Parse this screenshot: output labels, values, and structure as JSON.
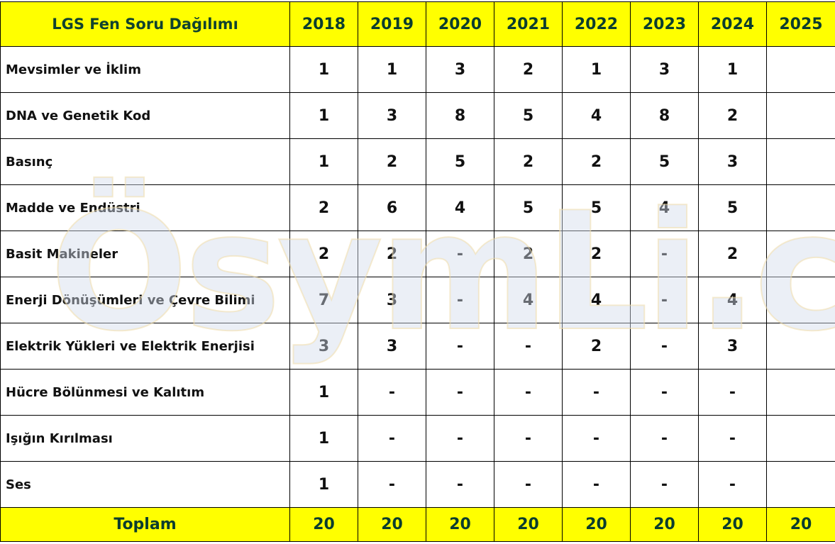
{
  "table": {
    "title": "LGS Fen Soru Dağılımı",
    "years": [
      "2018",
      "2019",
      "2020",
      "2021",
      "2022",
      "2023",
      "2024",
      "2025"
    ],
    "rows": [
      {
        "topic": "Mevsimler ve İklim",
        "values": [
          "1",
          "1",
          "3",
          "2",
          "1",
          "3",
          "1",
          ""
        ]
      },
      {
        "topic": "DNA ve Genetik Kod",
        "values": [
          "1",
          "3",
          "8",
          "5",
          "4",
          "8",
          "2",
          ""
        ]
      },
      {
        "topic": "Basınç",
        "values": [
          "1",
          "2",
          "5",
          "2",
          "2",
          "5",
          "3",
          ""
        ]
      },
      {
        "topic": "Madde ve Endüstri",
        "values": [
          "2",
          "6",
          "4",
          "5",
          "5",
          "4",
          "5",
          ""
        ]
      },
      {
        "topic": "Basit Makineler",
        "values": [
          "2",
          "2",
          "-",
          "2",
          "2",
          "-",
          "2",
          ""
        ]
      },
      {
        "topic": "Enerji Dönüşümleri ve Çevre Bilimi",
        "values": [
          "7",
          "3",
          "-",
          "4",
          "4",
          "-",
          "4",
          ""
        ]
      },
      {
        "topic": "Elektrik Yükleri ve Elektrik Enerjisi",
        "values": [
          "3",
          "3",
          "-",
          "-",
          "2",
          "-",
          "3",
          ""
        ]
      },
      {
        "topic": "Hücre Bölünmesi ve Kalıtım",
        "values": [
          "1",
          "-",
          "-",
          "-",
          "-",
          "-",
          "-",
          ""
        ]
      },
      {
        "topic": "Işığın Kırılması",
        "values": [
          "1",
          "-",
          "-",
          "-",
          "-",
          "-",
          "-",
          ""
        ]
      },
      {
        "topic": "Ses",
        "values": [
          "1",
          "-",
          "-",
          "-",
          "-",
          "-",
          "-",
          ""
        ]
      }
    ],
    "total_label": "Toplam",
    "totals": [
      "20",
      "20",
      "20",
      "20",
      "20",
      "20",
      "20",
      "20"
    ]
  },
  "watermark": "ÖsymLi.com",
  "colors": {
    "header_bg": "#ffff00",
    "border": "#000000",
    "header_text": "#0b3d2e"
  }
}
